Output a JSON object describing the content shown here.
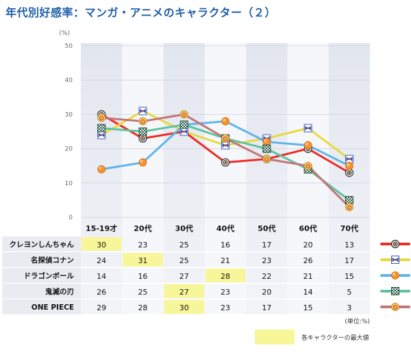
{
  "title": "年代別好感率：マンガ・アニメのキャラクター（２）",
  "chart_data": {
    "type": "line",
    "y_unit": "(%)",
    "ylim": [
      0,
      50
    ],
    "y_ticks": [
      "0",
      "10",
      "20",
      "30",
      "40",
      "50"
    ],
    "categories": [
      "15-19才",
      "20代",
      "30代",
      "40代",
      "50代",
      "60代",
      "70代"
    ],
    "series": [
      {
        "name": "クレヨンしんちゃん",
        "values": [
          30,
          23,
          25,
          16,
          17,
          20,
          13
        ],
        "color": "#ee2b24",
        "icon": "shinchan-icon"
      },
      {
        "name": "名探偵コナン",
        "values": [
          24,
          31,
          25,
          21,
          23,
          26,
          17
        ],
        "color": "#e8d93c",
        "icon": "conan-bowtie-icon"
      },
      {
        "name": "ドラゴンボール",
        "values": [
          14,
          16,
          27,
          28,
          22,
          21,
          15
        ],
        "color": "#5fb4ea",
        "icon": "dragon-ball-icon"
      },
      {
        "name": "鬼滅の刃",
        "values": [
          26,
          25,
          27,
          23,
          20,
          14,
          5
        ],
        "color": "#5ec2a0",
        "icon": "checkered-pattern-icon"
      },
      {
        "name": "ONE PIECE",
        "values": [
          29,
          28,
          30,
          23,
          17,
          15,
          3
        ],
        "color": "#c0767a",
        "icon": "straw-hat-icon"
      }
    ],
    "grid": true,
    "table": {
      "unit_note": "(単位:%)",
      "highlight_legend": "各キャラクターの最大値",
      "highlight_color": "#f7f799"
    }
  }
}
